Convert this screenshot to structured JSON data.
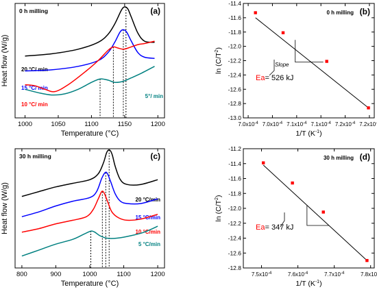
{
  "chart_data": [
    {
      "type": "line",
      "panel": "(a)",
      "title": "0 h milling",
      "xlabel": "Temperature (°C)",
      "ylabel": "Heat flow (W/g)",
      "xlim": [
        985,
        1210
      ],
      "ylim": [
        0,
        100
      ],
      "xticks": [
        1000,
        1050,
        1100,
        1150,
        1200
      ],
      "series": [
        {
          "name": "20 °C/ min",
          "color": "#000000",
          "x": [
            1000,
            1040,
            1080,
            1110,
            1125,
            1135,
            1145,
            1150,
            1155,
            1160,
            1170,
            1180,
            1195
          ],
          "y": [
            54,
            56,
            60,
            66,
            73,
            82,
            94,
            97,
            95,
            88,
            74,
            67,
            66
          ]
        },
        {
          "name": "15 °C/ min",
          "color": "#0000ff",
          "x": [
            1000,
            1040,
            1080,
            1110,
            1125,
            1135,
            1143,
            1148,
            1153,
            1160,
            1170,
            1180,
            1195
          ],
          "y": [
            41,
            42,
            45,
            50,
            57,
            66,
            75,
            77,
            75,
            67,
            57,
            53,
            52
          ]
        },
        {
          "name": "10 °C/ min",
          "color": "#ff0000",
          "x": [
            1000,
            1015,
            1030,
            1045,
            1065,
            1090,
            1110,
            1125,
            1133,
            1140,
            1148,
            1155,
            1170,
            1180,
            1195
          ],
          "y": [
            29,
            28,
            25,
            23,
            29,
            40,
            50,
            59,
            62,
            61,
            60,
            61,
            64,
            65,
            67
          ]
        },
        {
          "name": "5°/ min",
          "color": "#008080",
          "x": [
            1000,
            1020,
            1040,
            1060,
            1080,
            1100,
            1113,
            1125,
            1135,
            1148,
            1160,
            1175,
            1195
          ],
          "y": [
            25,
            22,
            20,
            21,
            25,
            31,
            34,
            33,
            31,
            32,
            35,
            39,
            45
          ]
        }
      ],
      "peak_markers": [
        {
          "x": 1113,
          "y": 34
        },
        {
          "x": 1133,
          "y": 62
        },
        {
          "x": 1148,
          "y": 77
        },
        {
          "x": 1152,
          "y": 97
        }
      ]
    },
    {
      "type": "scatter",
      "panel": "(b)",
      "title": "0 h milling",
      "xlabel": "1/T (K",
      "xlabel_sup": "-1",
      "xlabel_tail": ")",
      "ylabel": "ln (C/T",
      "ylabel_sup": "2",
      "ylabel_tail": ")",
      "xlim": [
        6.99,
        7.26
      ],
      "ylim": [
        -13.0,
        -11.4
      ],
      "xticks": [
        7.0,
        7.05,
        7.1,
        7.15,
        7.2,
        7.25
      ],
      "xticklabels": [
        "7.0x10",
        "7.0x10",
        "7.1x10",
        "7.1x10",
        "7.2x10",
        "7.2x10"
      ],
      "xtick_exponent": "-4",
      "yticks": [
        -11.4,
        -11.6,
        -11.8,
        -12.0,
        -12.2,
        -12.4,
        -12.6,
        -12.8,
        -13.0
      ],
      "yticklabels": [
        "-11.4",
        "-11.6",
        "-11.8",
        "-12.0",
        "-12.2",
        "-12.4",
        "-12.6",
        "-12.8",
        "-13.0"
      ],
      "points": {
        "x": [
          7.015,
          7.072,
          7.162,
          7.248
        ],
        "y": [
          -11.53,
          -11.81,
          -12.21,
          -12.86
        ]
      },
      "fit_line": {
        "x": [
          7.015,
          7.248
        ],
        "y": [
          -11.6,
          -12.86
        ]
      },
      "slope_triangle": {
        "x": [
          7.097,
          7.155
        ],
        "y": [
          -11.91,
          -12.22
        ]
      },
      "slope_label": "Slope",
      "ea_label": "Ea",
      "ea_value": "= 526 kJ",
      "ea_color": "#ff0000"
    },
    {
      "type": "line",
      "panel": "(c)",
      "title": "30 h milling",
      "xlabel": "Temperature (°C)",
      "ylabel": "Heat flow (W/g)",
      "xlim": [
        780,
        1220
      ],
      "ylim": [
        0,
        100
      ],
      "xticks": [
        800,
        900,
        1000,
        1100,
        1200
      ],
      "series": [
        {
          "name": "20 °C/min",
          "color": "#000000",
          "x": [
            800,
            850,
            900,
            950,
            1000,
            1025,
            1040,
            1050,
            1058,
            1066,
            1075,
            1090,
            1110,
            1150,
            1200
          ],
          "y": [
            60,
            64,
            68,
            71,
            74,
            79,
            88,
            97,
            99,
            95,
            85,
            74,
            70,
            70,
            74
          ]
        },
        {
          "name": "15 °C/min",
          "color": "#0000ff",
          "x": [
            800,
            850,
            900,
            950,
            1000,
            1020,
            1035,
            1045,
            1052,
            1062,
            1075,
            1090,
            1110,
            1150,
            1200
          ],
          "y": [
            43,
            47,
            52,
            56,
            59,
            64,
            75,
            80,
            79,
            72,
            62,
            56,
            54,
            54,
            58
          ]
        },
        {
          "name": "10 °C/min",
          "color": "#ff0000",
          "x": [
            800,
            850,
            900,
            950,
            990,
            1010,
            1025,
            1035,
            1042,
            1052,
            1065,
            1085,
            1110,
            1150,
            1200
          ],
          "y": [
            30,
            33,
            37,
            40,
            43,
            49,
            58,
            64,
            63,
            56,
            47,
            42,
            40,
            41,
            45
          ]
        },
        {
          "name": "5  °C/min",
          "color": "#008080",
          "x": [
            800,
            850,
            900,
            950,
            980,
            995,
            1005,
            1015,
            1030,
            1050,
            1080,
            1120,
            1160,
            1200
          ],
          "y": [
            10,
            15,
            20,
            24,
            28,
            30,
            31,
            30,
            27,
            25,
            25,
            27,
            30,
            35
          ]
        }
      ],
      "peak_markers": [
        {
          "x": 1003,
          "y": 31
        },
        {
          "x": 1037,
          "y": 64
        },
        {
          "x": 1047,
          "y": 80
        },
        {
          "x": 1057,
          "y": 99
        }
      ]
    },
    {
      "type": "scatter",
      "panel": "(d)",
      "title": "30 h milling",
      "xlabel": "1/T (K",
      "xlabel_sup": "-1",
      "xlabel_tail": ")",
      "ylabel": "ln (C/T",
      "ylabel_sup": "2",
      "ylabel_tail": ")",
      "xlim": [
        7.45,
        7.81
      ],
      "ylim": [
        -12.8,
        -11.2
      ],
      "xticks": [
        7.5,
        7.6,
        7.7,
        7.8
      ],
      "xticklabels": [
        "7.5x10",
        "7.6x10",
        "7.7x10",
        "7.8x10"
      ],
      "xtick_exponent": "-4",
      "yticks": [
        -11.2,
        -11.4,
        -11.6,
        -11.8,
        -12.0,
        -12.2,
        -12.4,
        -12.6,
        -12.8
      ],
      "yticklabels": [
        "-11.2",
        "-11.4",
        "-11.6",
        "-11.8",
        "-12.0",
        "-12.2",
        "-12.4",
        "-12.6",
        "-12.8"
      ],
      "points": {
        "x": [
          7.505,
          7.585,
          7.67,
          7.79
        ],
        "y": [
          -11.39,
          -11.66,
          -12.05,
          -12.7
        ]
      },
      "fit_line": {
        "x": [
          7.505,
          7.79
        ],
        "y": [
          -11.42,
          -12.7
        ]
      },
      "slope_triangle": {
        "x": [
          7.625,
          7.685
        ],
        "y": [
          -11.96,
          -12.23
        ]
      },
      "ea_label": "Ea",
      "ea_value": "= 347 kJ",
      "ea_color": "#ff0000"
    }
  ]
}
